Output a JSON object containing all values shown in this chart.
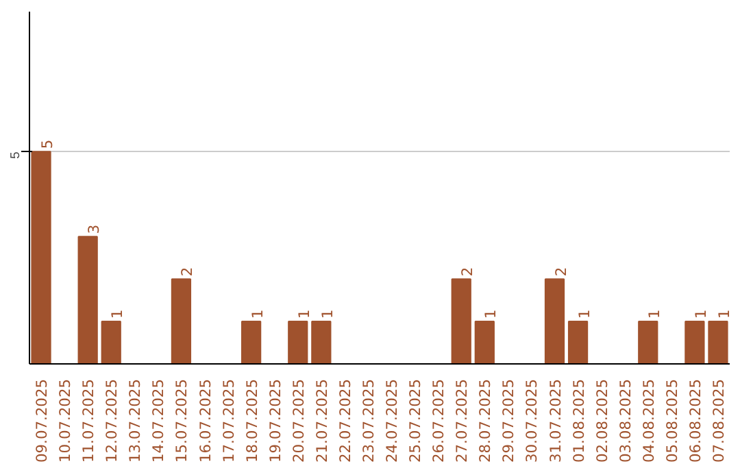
{
  "chart_data": {
    "type": "bar",
    "categories": [
      "09.07.2025",
      "10.07.2025",
      "11.07.2025",
      "12.07.2025",
      "13.07.2025",
      "14.07.2025",
      "15.07.2025",
      "16.07.2025",
      "17.07.2025",
      "18.07.2025",
      "19.07.2025",
      "20.07.2025",
      "21.07.2025",
      "22.07.2025",
      "23.07.2025",
      "24.07.2025",
      "25.07.2025",
      "26.07.2025",
      "27.07.2025",
      "28.07.2025",
      "29.07.2025",
      "30.07.2025",
      "31.07.2025",
      "01.08.2025",
      "02.08.2025",
      "03.08.2025",
      "04.08.2025",
      "05.08.2025",
      "06.08.2025",
      "07.08.2025"
    ],
    "values": [
      5,
      0,
      3,
      1,
      0,
      0,
      2,
      0,
      0,
      1,
      0,
      1,
      1,
      0,
      0,
      0,
      0,
      0,
      2,
      1,
      0,
      0,
      2,
      1,
      0,
      0,
      1,
      0,
      1,
      1
    ],
    "value_labels": [
      "5",
      null,
      "3",
      "1",
      null,
      null,
      "2",
      null,
      null,
      "1",
      null,
      "1",
      "1",
      null,
      null,
      null,
      null,
      null,
      "2",
      "1",
      null,
      null,
      "2",
      "1",
      null,
      null,
      "1",
      null,
      "1",
      "1"
    ],
    "color": "#a0522d",
    "ylim": [
      0,
      8.3
    ],
    "yticks": [
      5
    ],
    "grid": "y"
  }
}
